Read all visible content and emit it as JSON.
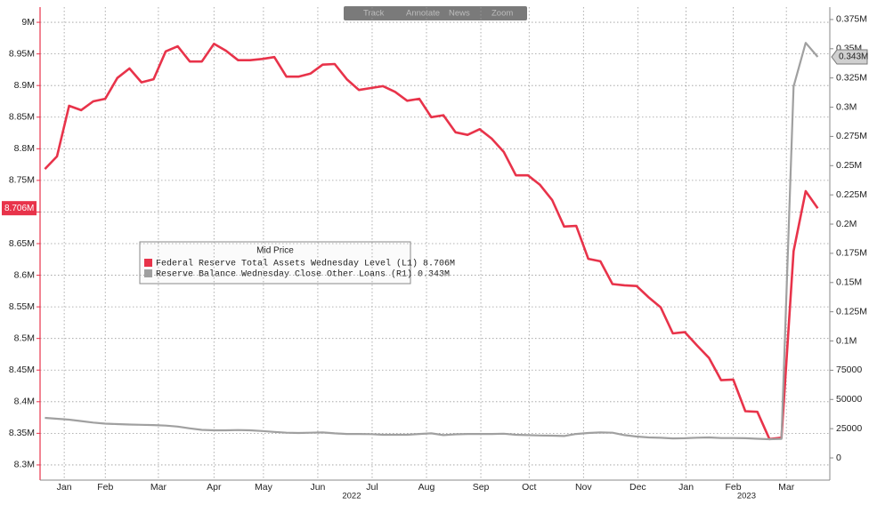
{
  "toolbar": [
    "Track",
    "Annotate",
    "News",
    "Zoom"
  ],
  "chart_data": {
    "type": "line",
    "legend_title": "Mid Price",
    "x": [
      0,
      1,
      2,
      3,
      4,
      5,
      6,
      7,
      8,
      9,
      10,
      11,
      12,
      13,
      14,
      15,
      16,
      17,
      18,
      19,
      20,
      21,
      22,
      23,
      24,
      25,
      26,
      27,
      28,
      29,
      30,
      31,
      32,
      33,
      34,
      35,
      36,
      37,
      38,
      39,
      40,
      41,
      42,
      43,
      44,
      45,
      46,
      47,
      48,
      49,
      50,
      51,
      52,
      53,
      54,
      55,
      56,
      57,
      58,
      59,
      60,
      61,
      62,
      63,
      64
    ],
    "xlim": [
      -0.4,
      65
    ],
    "xticks": [
      {
        "value": 1.6,
        "label": "Jan"
      },
      {
        "value": 5.0,
        "label": "Feb"
      },
      {
        "value": 9.4,
        "label": "Mar"
      },
      {
        "value": 14.0,
        "label": "Apr"
      },
      {
        "value": 18.1,
        "label": "May"
      },
      {
        "value": 22.6,
        "label": "Jun"
      },
      {
        "value": 27.1,
        "label": "Jul"
      },
      {
        "value": 31.6,
        "label": "Aug"
      },
      {
        "value": 36.1,
        "label": "Sep"
      },
      {
        "value": 40.1,
        "label": "Oct"
      },
      {
        "value": 44.6,
        "label": "Nov"
      },
      {
        "value": 49.1,
        "label": "Dec"
      },
      {
        "value": 53.1,
        "label": "Jan"
      },
      {
        "value": 57.0,
        "label": "Feb"
      },
      {
        "value": 61.4,
        "label": "Mar"
      }
    ],
    "year_ticks": [
      {
        "value": 25.4,
        "label": "2022"
      },
      {
        "value": 58.1,
        "label": "2023"
      }
    ],
    "ylim": [
      8276000,
      9024000
    ],
    "yticks": [
      {
        "value": 8300000,
        "label": "8.3M"
      },
      {
        "value": 8350000,
        "label": "8.35M"
      },
      {
        "value": 8400000,
        "label": "8.4M"
      },
      {
        "value": 8450000,
        "label": "8.45M"
      },
      {
        "value": 8500000,
        "label": "8.5M"
      },
      {
        "value": 8550000,
        "label": "8.55M"
      },
      {
        "value": 8600000,
        "label": "8.6M"
      },
      {
        "value": 8650000,
        "label": "8.65M"
      },
      {
        "value": 8700000,
        "label": "8.7M"
      },
      {
        "value": 8750000,
        "label": "8.75M"
      },
      {
        "value": 8800000,
        "label": "8.8M"
      },
      {
        "value": 8850000,
        "label": "8.85M"
      },
      {
        "value": 8900000,
        "label": "8.9M"
      },
      {
        "value": 8950000,
        "label": "8.95M"
      },
      {
        "value": 9000000,
        "label": "9M"
      }
    ],
    "y2lim": [
      -19000,
      385600
    ],
    "y2ticks": [
      0,
      25000,
      50000,
      75000,
      {
        "value": 100000,
        "label": "0.1M"
      },
      {
        "value": 125000,
        "label": "0.125M"
      },
      {
        "value": 150000,
        "label": "0.15M"
      },
      {
        "value": 175000,
        "label": "0.175M"
      },
      {
        "value": 200000,
        "label": "0.2M"
      },
      {
        "value": 225000,
        "label": "0.225M"
      },
      {
        "value": 250000,
        "label": "0.25M"
      },
      {
        "value": 275000,
        "label": "0.275M"
      },
      {
        "value": 300000,
        "label": "0.3M"
      },
      {
        "value": 325000,
        "label": "0.325M"
      },
      {
        "value": 350000,
        "label": "0.35M"
      },
      {
        "value": 375000,
        "label": "0.375M"
      }
    ],
    "grid": true,
    "series": [
      {
        "name": "Federal Reserve Total Assets Wednesday Level (L1) 8.706M",
        "color": "#e8334a",
        "axis": "y",
        "last_label": "8.706M",
        "values": [
          8768000,
          8788000,
          8868000,
          8861000,
          8875000,
          8879000,
          8912000,
          8927000,
          8905000,
          8910000,
          8954000,
          8962000,
          8938000,
          8938000,
          8966000,
          8955000,
          8940000,
          8940000,
          8942000,
          8945000,
          8914000,
          8914000,
          8919000,
          8933000,
          8934000,
          8910000,
          8893000,
          8896000,
          8899000,
          8890000,
          8876000,
          8879000,
          8850000,
          8853000,
          8826000,
          8822000,
          8831000,
          8816000,
          8795000,
          8758000,
          8758000,
          8743000,
          8719000,
          8677000,
          8678000,
          8626000,
          8622000,
          8586000,
          8584000,
          8583000,
          8565000,
          8549000,
          8508000,
          8510000,
          8489000,
          8469000,
          8434000,
          8435000,
          8385000,
          8384000,
          8341000,
          8343000,
          8638000,
          8733000,
          8706000
        ]
      },
      {
        "name": "Reserve Balance Wednesday Close Other Loans (R1) 0.343M",
        "color": "#a0a0a0",
        "axis": "y2",
        "last_label": "0.343M",
        "values": [
          34200,
          33500,
          32700,
          31500,
          30200,
          29300,
          28900,
          28500,
          28300,
          28100,
          27600,
          26800,
          25300,
          24000,
          23600,
          23600,
          23800,
          23600,
          23000,
          22200,
          21500,
          21300,
          21500,
          21800,
          21000,
          20500,
          20500,
          20300,
          19800,
          19800,
          19800,
          20500,
          21000,
          19500,
          20200,
          20500,
          20500,
          20500,
          20700,
          19800,
          19500,
          19200,
          19000,
          18700,
          20500,
          21300,
          21800,
          21500,
          19500,
          18300,
          17500,
          17200,
          16700,
          16800,
          17300,
          17500,
          17000,
          17000,
          16800,
          16400,
          16000,
          16300,
          317700,
          355000,
          343000
        ]
      }
    ]
  }
}
